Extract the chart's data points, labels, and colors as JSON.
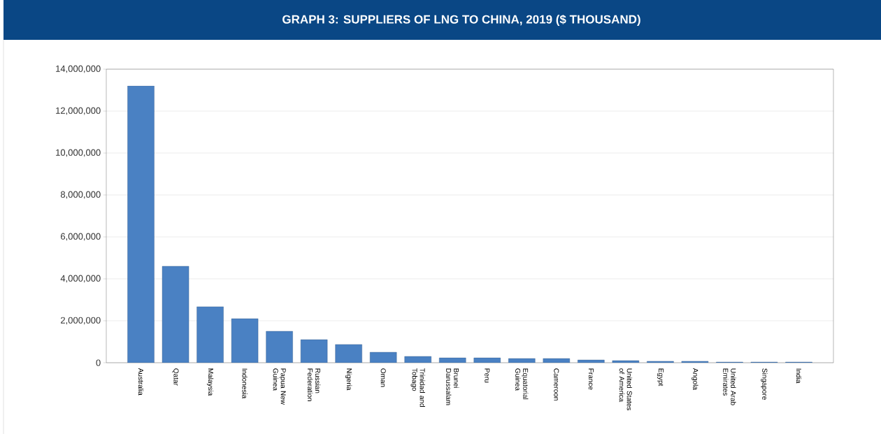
{
  "chart_data": {
    "type": "bar",
    "title": "GRAPH 3: SUPPLIERS OF LNG TO CHINA, 2019 ($ THOUSAND)",
    "categories": [
      "Australia",
      "Qatar",
      "Malaysia",
      "Indonesia",
      "Papua New Guinea",
      "Russian Federation",
      "Nigeria",
      "Oman",
      "Trinidad and Tobago",
      "Brunei Darussalam",
      "Peru",
      "Equatorial Guinea",
      "Cameroon",
      "France",
      "United States of America",
      "Egypt",
      "Angola",
      "United Arab Emirates",
      "Singapore",
      "India"
    ],
    "values": [
      13200000,
      4600000,
      2670000,
      2100000,
      1500000,
      1100000,
      870000,
      500000,
      300000,
      230000,
      230000,
      200000,
      200000,
      130000,
      100000,
      70000,
      70000,
      30000,
      30000,
      30000
    ],
    "color": "#4a81c3",
    "ylim": [
      0,
      14000000
    ],
    "yticks": [
      {
        "value": 0,
        "label": "0"
      },
      {
        "value": 2000000,
        "label": "2,000,000"
      },
      {
        "value": 4000000,
        "label": "4,000,000"
      },
      {
        "value": 6000000,
        "label": "6,000,000"
      },
      {
        "value": 8000000,
        "label": "8,000,000"
      },
      {
        "value": 10000000,
        "label": "10,000,000"
      },
      {
        "value": 12000000,
        "label": "12,000,000"
      },
      {
        "value": 14000000,
        "label": "14,000,000"
      }
    ],
    "grid": "y"
  }
}
